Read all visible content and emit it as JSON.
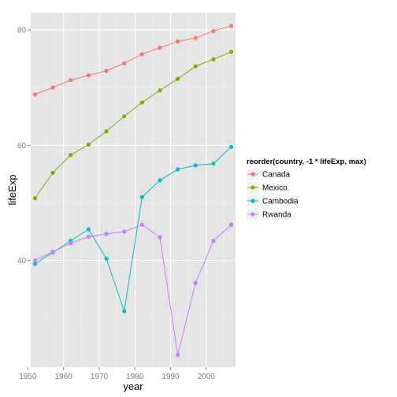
{
  "chart_data": {
    "type": "line",
    "xlabel": "year",
    "ylabel": "lifeExp",
    "xlim": [
      1950.8,
      2008.2
    ],
    "ylim": [
      21.5,
      83.0
    ],
    "x_ticks": [
      1950,
      1960,
      1970,
      1980,
      1990,
      2000
    ],
    "y_ticks": [
      40,
      60,
      80
    ],
    "grid": true,
    "legend_title": "reorder(country, -1 * lifeExp, max)",
    "legend_position": "right",
    "x": [
      1952,
      1957,
      1962,
      1967,
      1972,
      1977,
      1982,
      1987,
      1992,
      1997,
      2002,
      2007
    ],
    "series": [
      {
        "name": "Canada",
        "color": "#F8766D",
        "values": [
          68.8,
          70.0,
          71.3,
          72.1,
          72.9,
          74.2,
          75.8,
          76.9,
          78.0,
          78.6,
          79.8,
          80.7
        ]
      },
      {
        "name": "Mexico",
        "color": "#7CAE00",
        "values": [
          50.8,
          55.2,
          58.3,
          60.1,
          62.4,
          65.0,
          67.4,
          69.5,
          71.5,
          73.7,
          74.9,
          76.2
        ]
      },
      {
        "name": "Cambodia",
        "color": "#00BFC4",
        "values": [
          39.4,
          41.4,
          43.4,
          45.4,
          40.3,
          31.2,
          51.0,
          53.9,
          55.8,
          56.5,
          56.8,
          59.7
        ]
      },
      {
        "name": "Rwanda",
        "color": "#C77CFF",
        "values": [
          40.0,
          41.5,
          43.0,
          44.1,
          44.6,
          45.0,
          46.2,
          44.0,
          23.6,
          36.1,
          43.4,
          46.2
        ]
      }
    ]
  }
}
